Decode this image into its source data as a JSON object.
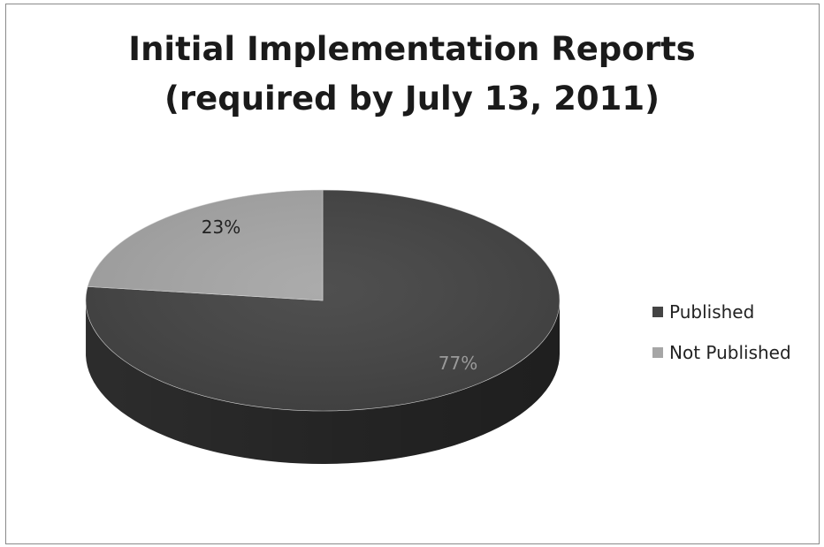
{
  "chart_data": {
    "type": "pie",
    "title_lines": [
      "Initial Implementation Reports",
      "(required by July 13, 2011)"
    ],
    "slices": [
      {
        "label": "Published",
        "value": 77,
        "data_label": "77%",
        "color": "#444444",
        "side_color": "#2f2f2f"
      },
      {
        "label": "Not Published",
        "value": 23,
        "data_label": "23%",
        "color": "#a6a6a6",
        "side_color": "#7a7a7a"
      }
    ],
    "legend_position": "right",
    "style": "3d"
  }
}
